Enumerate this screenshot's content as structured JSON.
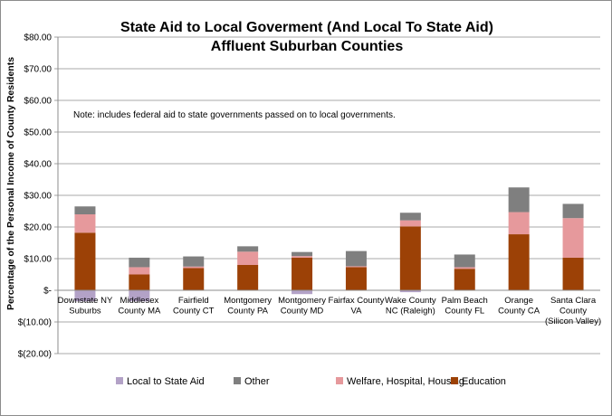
{
  "chart_data": {
    "type": "bar",
    "stacked": true,
    "title": "State Aid to Local Goverment (And Local To State Aid)",
    "subtitle": "Affluent Suburban Counties",
    "ylabel": "Percentage of the Personal Income of County Residents",
    "note": "Note:  includes federal aid to state governments passed on to local governments.",
    "ylim": [
      -20,
      80
    ],
    "yticks": [
      80,
      70,
      60,
      50,
      40,
      30,
      20,
      10,
      0,
      -10,
      -20
    ],
    "ytick_labels": [
      "$80.00",
      "$70.00",
      "$60.00",
      "$50.00",
      "$40.00",
      "$30.00",
      "$20.00",
      "$10.00",
      "$-",
      "$(10.00)",
      "$(20.00)"
    ],
    "grid": true,
    "legend_position": "bottom",
    "categories": [
      [
        "Downstate NY",
        "Suburbs"
      ],
      [
        "Middlesex",
        "County MA"
      ],
      [
        "Fairfield",
        "County CT"
      ],
      [
        "Montgomery",
        "County PA"
      ],
      [
        "Montgomery",
        "County MD"
      ],
      [
        "Fairfax County",
        "VA"
      ],
      [
        "Wake County",
        "NC (Raleigh)"
      ],
      [
        "Palm Beach",
        "County FL"
      ],
      [
        "Orange",
        "County CA"
      ],
      [
        "Santa Clara",
        "County",
        "(Silicon Valley)"
      ]
    ],
    "series": [
      {
        "name": "Local to State  Aid",
        "color": "#b3a2c7",
        "values": [
          -3.5,
          -3.5,
          0,
          0,
          -1.2,
          0,
          -0.6,
          0,
          0,
          0
        ]
      },
      {
        "name": "Education",
        "color": "#9c4106",
        "values": [
          18.2,
          5.0,
          7.0,
          8.0,
          10.3,
          7.3,
          20.2,
          6.8,
          17.7,
          10.3
        ]
      },
      {
        "name": "Welfare, Hospital, Housing",
        "color": "#e6999c",
        "values": [
          5.8,
          2.3,
          0.5,
          4.2,
          0.5,
          0.3,
          1.9,
          0.5,
          7.0,
          12.5
        ]
      },
      {
        "name": "Other",
        "color": "#7f7f7f",
        "values": [
          2.5,
          3.0,
          3.2,
          1.7,
          1.3,
          4.8,
          2.4,
          4.0,
          7.8,
          4.5
        ]
      }
    ],
    "legend_order": [
      "Local to State  Aid",
      "Other",
      "Welfare, Hospital, Housing",
      "Education"
    ]
  }
}
